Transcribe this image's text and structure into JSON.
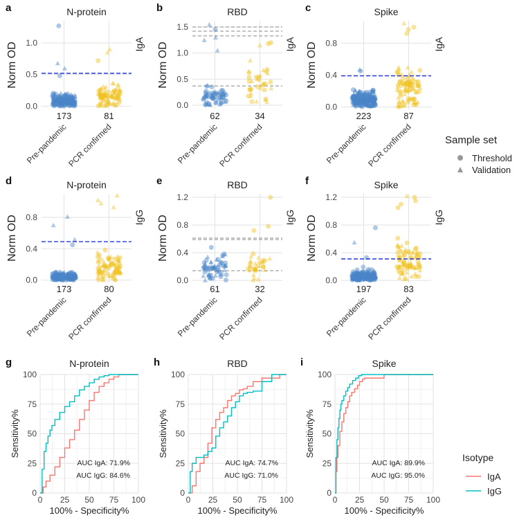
{
  "colors": {
    "pre_pandemic": "#4a86c8",
    "pcr_confirmed": "#f0c020",
    "threshold_line": "#2233dd",
    "aux_line": "#888888",
    "IgA": "#f8766d",
    "IgG": "#00bfc4"
  },
  "strip_legend": {
    "title": "Sample set",
    "items": [
      {
        "label": "Threshold",
        "shape": "circle"
      },
      {
        "label": "Validation",
        "shape": "triangle"
      }
    ]
  },
  "roc_legend": {
    "title": "Isotype",
    "items": [
      {
        "label": "IgA",
        "color_key": "IgA"
      },
      {
        "label": "IgG",
        "color_key": "IgG"
      }
    ]
  },
  "chart_data": [
    {
      "panel": "a",
      "type": "scatter",
      "title": "N-protein",
      "ylabel": "Norm OD",
      "side_label": "IgA",
      "categories": [
        "Pre-pandemic",
        "PCR confirmed"
      ],
      "counts": [
        "173",
        "81"
      ],
      "yticks": [
        "0.0",
        "0.5",
        "1.0"
      ],
      "ylim": [
        -0.05,
        1.35
      ],
      "threshold": 0.52,
      "aux_lines": [],
      "series": [
        {
          "name": "Pre-pandemic",
          "n": 173,
          "center": 0.12,
          "spread": 0.1,
          "max": 0.52,
          "outliers": [
            1.27,
            0.68,
            0.6,
            0.48
          ]
        },
        {
          "name": "PCR confirmed",
          "n": 81,
          "center": 0.22,
          "spread": 0.15,
          "max": 0.7,
          "outliers": [
            0.9,
            0.85,
            0.72
          ]
        }
      ]
    },
    {
      "panel": "b",
      "type": "scatter",
      "title": "RBD",
      "ylabel": "Norm OD",
      "side_label": "IgA",
      "categories": [
        "Pre-pandemic",
        "PCR confirmed"
      ],
      "counts": [
        "62",
        "34"
      ],
      "yticks": [
        "0.0",
        "0.5",
        "1.0",
        "1.5"
      ],
      "ylim": [
        -0.08,
        1.62
      ],
      "threshold": null,
      "aux_lines": [
        1.5,
        1.42,
        1.33,
        0.37
      ],
      "series": [
        {
          "name": "Pre-pandemic",
          "n": 62,
          "center": 0.25,
          "spread": 0.2,
          "max": 1.0,
          "outliers": [
            1.55,
            1.45,
            1.3,
            1.25,
            1.05
          ]
        },
        {
          "name": "PCR confirmed",
          "n": 34,
          "center": 0.5,
          "spread": 0.35,
          "max": 1.2,
          "outliers": [
            1.2,
            1.18,
            1.15
          ]
        }
      ]
    },
    {
      "panel": "c",
      "type": "scatter",
      "title": "Spike",
      "ylabel": "Norm OD",
      "side_label": "IgA",
      "categories": [
        "Pre-pandemic",
        "PCR confirmed"
      ],
      "counts": [
        "223",
        "87"
      ],
      "yticks": [
        "0.0",
        "0.4",
        "0.8"
      ],
      "ylim": [
        -0.03,
        1.08
      ],
      "threshold": 0.39,
      "aux_lines": [],
      "series": [
        {
          "name": "Pre-pandemic",
          "n": 223,
          "center": 0.12,
          "spread": 0.1,
          "max": 0.48,
          "outliers": [
            0.47,
            0.45
          ]
        },
        {
          "name": "PCR confirmed",
          "n": 87,
          "center": 0.3,
          "spread": 0.2,
          "max": 0.85,
          "outliers": [
            1.05,
            1.0,
            0.97,
            0.92
          ]
        }
      ]
    },
    {
      "panel": "d",
      "type": "scatter",
      "title": "N-protein",
      "ylabel": "Norm OD",
      "side_label": "IgG",
      "categories": [
        "Pre-pandemic",
        "PCR confirmed"
      ],
      "counts": [
        "173",
        "80"
      ],
      "yticks": [
        "0.0",
        "0.4",
        "0.8"
      ],
      "ylim": [
        -0.03,
        1.1
      ],
      "threshold": 0.49,
      "aux_lines": [],
      "series": [
        {
          "name": "Pre-pandemic",
          "n": 173,
          "center": 0.06,
          "spread": 0.06,
          "max": 0.45,
          "outliers": [
            0.81,
            0.7,
            0.52,
            0.45
          ]
        },
        {
          "name": "PCR confirmed",
          "n": 80,
          "center": 0.2,
          "spread": 0.2,
          "max": 0.9,
          "outliers": [
            1.08,
            1.02,
            0.98,
            0.93
          ]
        }
      ]
    },
    {
      "panel": "e",
      "type": "scatter",
      "title": "RBD",
      "ylabel": "Norm OD",
      "side_label": "IgG",
      "categories": [
        "Pre-pandemic",
        "PCR confirmed"
      ],
      "counts": [
        "61",
        "32"
      ],
      "yticks": [
        "0.0",
        "0.4",
        "0.8",
        "1.2"
      ],
      "ylim": [
        -0.03,
        1.25
      ],
      "threshold": null,
      "aux_lines": [
        0.61,
        0.59,
        0.14
      ],
      "series": [
        {
          "name": "Pre-pandemic",
          "n": 61,
          "center": 0.25,
          "spread": 0.18,
          "max": 0.62,
          "outliers": []
        },
        {
          "name": "PCR confirmed",
          "n": 32,
          "center": 0.25,
          "spread": 0.2,
          "max": 0.75,
          "outliers": [
            1.2,
            0.78,
            0.72
          ]
        }
      ]
    },
    {
      "panel": "f",
      "type": "scatter",
      "title": "Spike",
      "ylabel": "Norm OD",
      "side_label": "IgG",
      "categories": [
        "Pre-pandemic",
        "PCR confirmed"
      ],
      "counts": [
        "197",
        "83"
      ],
      "yticks": [
        "0.0",
        "0.4",
        "0.8",
        "1.2"
      ],
      "ylim": [
        -0.03,
        1.25
      ],
      "threshold": 0.31,
      "aux_lines": [],
      "series": [
        {
          "name": "Pre-pandemic",
          "n": 197,
          "center": 0.08,
          "spread": 0.07,
          "max": 0.32,
          "outliers": [
            0.76,
            0.55,
            0.33
          ]
        },
        {
          "name": "PCR confirmed",
          "n": 83,
          "center": 0.35,
          "spread": 0.28,
          "max": 1.0,
          "outliers": [
            1.22,
            1.2,
            1.15,
            1.1,
            1.05
          ]
        }
      ]
    },
    {
      "panel": "g",
      "type": "line",
      "title": "N-protein",
      "xlabel": "100% - Specificity%",
      "ylabel": "Sensitivity%",
      "xticks": [
        "0",
        "25",
        "50",
        "75",
        "100"
      ],
      "yticks": [
        "0",
        "25",
        "50",
        "75",
        "100"
      ],
      "xlim": [
        0,
        100
      ],
      "ylim": [
        0,
        100
      ],
      "annotations": [
        "AUC IgA: 71.9%",
        "AUC IgG: 84.6%"
      ],
      "series": [
        {
          "name": "IgA",
          "x": [
            0,
            3,
            6,
            10,
            15,
            20,
            25,
            30,
            35,
            40,
            45,
            50,
            55,
            60,
            65,
            70,
            75,
            80,
            90,
            100
          ],
          "y": [
            0,
            5,
            10,
            15,
            22,
            30,
            38,
            45,
            53,
            62,
            70,
            78,
            85,
            90,
            93,
            96,
            98,
            100,
            100,
            100
          ]
        },
        {
          "name": "IgG",
          "x": [
            0,
            2,
            4,
            6,
            8,
            10,
            12,
            15,
            20,
            25,
            30,
            35,
            40,
            45,
            50,
            55,
            60,
            65,
            70,
            75,
            100
          ],
          "y": [
            0,
            20,
            35,
            42,
            48,
            53,
            57,
            62,
            68,
            73,
            77,
            82,
            87,
            90,
            93,
            96,
            98,
            99,
            100,
            100,
            100
          ]
        }
      ]
    },
    {
      "panel": "h",
      "type": "line",
      "title": "RBD",
      "xlabel": "100% - Specificity%",
      "ylabel": "Sensitivity%",
      "xticks": [
        "0",
        "25",
        "50",
        "75",
        "100"
      ],
      "yticks": [
        "0",
        "25",
        "50",
        "75",
        "100"
      ],
      "xlim": [
        0,
        100
      ],
      "ylim": [
        0,
        100
      ],
      "annotations": [
        "AUC IgA: 74.7%",
        "AUC IgG: 71.0%"
      ],
      "series": [
        {
          "name": "IgA",
          "x": [
            0,
            4,
            8,
            12,
            16,
            20,
            24,
            28,
            32,
            36,
            40,
            44,
            48,
            52,
            56,
            60,
            66,
            75,
            88,
            93,
            100
          ],
          "y": [
            0,
            6,
            18,
            25,
            30,
            42,
            55,
            62,
            68,
            72,
            78,
            82,
            84,
            87,
            88,
            90,
            94,
            97,
            97,
            100,
            100
          ]
        },
        {
          "name": "IgG",
          "x": [
            0,
            2,
            4,
            8,
            12,
            16,
            20,
            24,
            28,
            32,
            36,
            40,
            44,
            48,
            52,
            56,
            60,
            66,
            75,
            85,
            100
          ],
          "y": [
            0,
            18,
            25,
            30,
            30,
            32,
            35,
            38,
            48,
            55,
            60,
            65,
            72,
            77,
            82,
            84,
            85,
            86,
            94,
            100,
            100
          ]
        }
      ]
    },
    {
      "panel": "i",
      "type": "line",
      "title": "Spike",
      "xlabel": "100% - Specificity%",
      "ylabel": "Sensitivity%",
      "xticks": [
        "0",
        "25",
        "50",
        "75",
        "100"
      ],
      "yticks": [
        "0",
        "25",
        "50",
        "75",
        "100"
      ],
      "xlim": [
        0,
        100
      ],
      "ylim": [
        0,
        100
      ],
      "annotations": [
        "AUC IgA: 89.9%",
        "AUC IgG: 95.0%"
      ],
      "series": [
        {
          "name": "IgA",
          "x": [
            0,
            1,
            2,
            3,
            5,
            7,
            9,
            11,
            13,
            15,
            17,
            20,
            23,
            25,
            28,
            30,
            50,
            100
          ],
          "y": [
            0,
            18,
            30,
            40,
            52,
            60,
            67,
            72,
            77,
            82,
            85,
            88,
            91,
            94,
            96,
            97,
            100,
            100
          ]
        },
        {
          "name": "IgG",
          "x": [
            0,
            1,
            2,
            3,
            4,
            5,
            6,
            7,
            9,
            11,
            13,
            15,
            18,
            21,
            24,
            27,
            30,
            100
          ],
          "y": [
            0,
            30,
            45,
            55,
            63,
            70,
            75,
            78,
            82,
            86,
            89,
            92,
            95,
            97,
            99,
            100,
            100,
            100
          ]
        }
      ]
    }
  ]
}
